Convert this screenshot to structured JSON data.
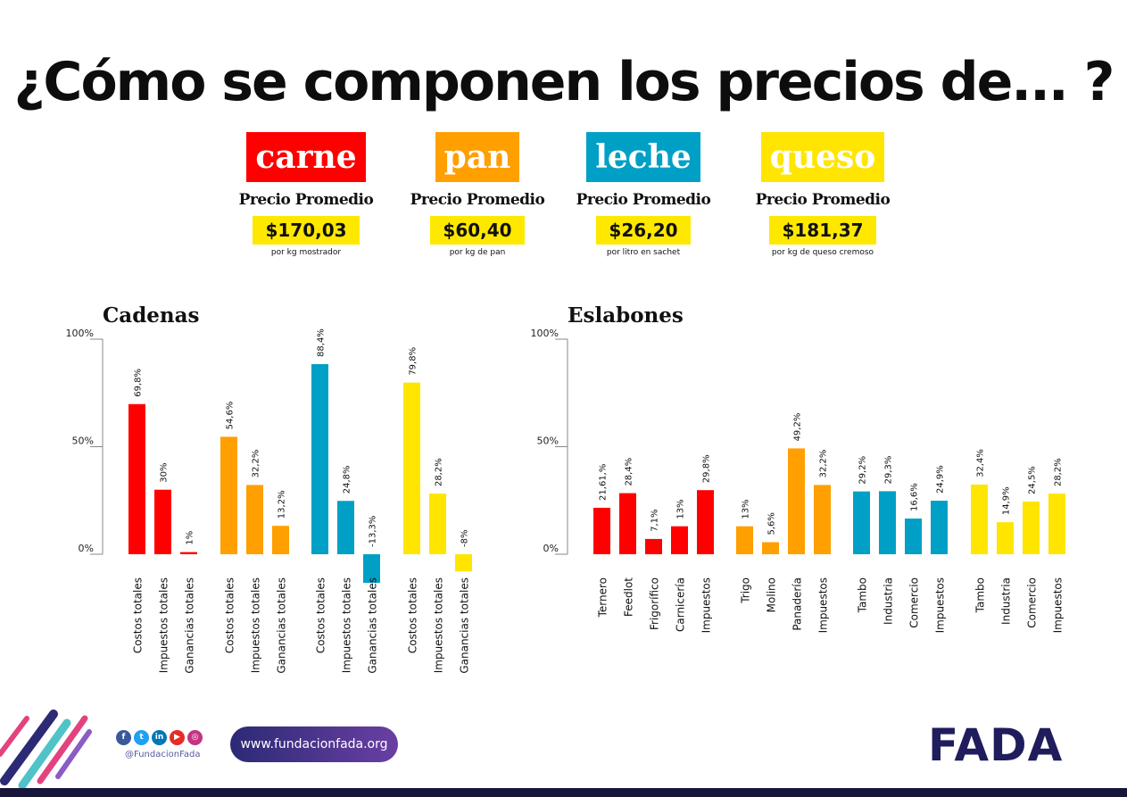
{
  "title": "¿Cómo se componen los precios de... ?",
  "products": [
    {
      "name": "carne",
      "label": "Precio Promedio",
      "price": "$170,03",
      "unit": "por kg mostrador",
      "color": "#ff0000"
    },
    {
      "name": "pan",
      "label": "Precio Promedio",
      "price": "$60,40",
      "unit": "por kg de pan",
      "color": "#ff9f00"
    },
    {
      "name": "leche",
      "label": "Precio Promedio",
      "price": "$26,20",
      "unit": "por litro en sachet",
      "color": "#00a0c6"
    },
    {
      "name": "queso",
      "label": "Precio Promedio",
      "price": "$181,37",
      "unit": "por kg de queso cremoso",
      "color": "#ffe500"
    }
  ],
  "chart_data": [
    {
      "type": "bar",
      "title": "Cadenas",
      "ylim": [
        0,
        100
      ],
      "yticks": [
        "100%",
        "50%",
        "0%"
      ],
      "groups": [
        {
          "product": "carne",
          "color": "#ff0000",
          "categories": [
            "Costos totales",
            "Impuestos totales",
            "Ganancias totales"
          ],
          "values": [
            69.8,
            30,
            1
          ],
          "labels": [
            "69,8%",
            "30%",
            "1%"
          ]
        },
        {
          "product": "pan",
          "color": "#ff9f00",
          "categories": [
            "Costos totales",
            "Impuestos totales",
            "Ganancias totales"
          ],
          "values": [
            54.6,
            32.2,
            13.2
          ],
          "labels": [
            "54,6%",
            "32,2%",
            "13,2%"
          ]
        },
        {
          "product": "leche",
          "color": "#00a0c6",
          "categories": [
            "Costos totales",
            "Impuestos totales",
            "Ganancias totales"
          ],
          "values": [
            88.4,
            24.8,
            -13.3
          ],
          "labels": [
            "88,4%",
            "24,8%",
            "-13,3%"
          ]
        },
        {
          "product": "queso",
          "color": "#ffe500",
          "categories": [
            "Costos totales",
            "Impuestos totales",
            "Ganancias totales"
          ],
          "values": [
            79.8,
            28.2,
            -8
          ],
          "labels": [
            "79,8%",
            "28,2%",
            "-8%"
          ]
        }
      ]
    },
    {
      "type": "bar",
      "title": "Eslabones",
      "ylim": [
        0,
        100
      ],
      "yticks": [
        "100%",
        "50%",
        "0%"
      ],
      "groups": [
        {
          "product": "carne",
          "color": "#ff0000",
          "categories": [
            "Ternero",
            "Feedlot",
            "Frigorífico",
            "Carnicería",
            "Impuestos"
          ],
          "values": [
            21.6,
            28.4,
            7.1,
            13,
            29.8
          ],
          "labels": [
            "21,61,%",
            "28,4%",
            "7,1%",
            "13%",
            "29,8%"
          ]
        },
        {
          "product": "pan",
          "color": "#ff9f00",
          "categories": [
            "Trigo",
            "Molino",
            "Panadería",
            "Impuestos"
          ],
          "values": [
            13,
            5.6,
            49.2,
            32.2
          ],
          "labels": [
            "13%",
            "5,6%",
            "49,2%",
            "32,2%"
          ]
        },
        {
          "product": "leche",
          "color": "#00a0c6",
          "categories": [
            "Tambo",
            "Industria",
            "Comercio",
            "Impuestos"
          ],
          "values": [
            29.2,
            29.3,
            16.6,
            24.9
          ],
          "labels": [
            "29,2%",
            "29,3%",
            "16,6%",
            "24,9%"
          ]
        },
        {
          "product": "queso",
          "color": "#ffe500",
          "categories": [
            "Tambo",
            "Industria",
            "Comercio",
            "Impuestos"
          ],
          "values": [
            32.4,
            14.9,
            24.5,
            28.2
          ],
          "labels": [
            "32,4%",
            "14,9%",
            "24,5%",
            "28,2%"
          ]
        }
      ]
    }
  ],
  "footer": {
    "social_icons": [
      "facebook-icon",
      "twitter-icon",
      "linkedin-icon",
      "youtube-icon",
      "instagram-icon"
    ],
    "social_glyphs": [
      "f",
      "t",
      "in",
      "▶",
      "◎"
    ],
    "handle": "@FundacionFada",
    "url": "www.fundacionfada.org",
    "logo": "FADA"
  }
}
